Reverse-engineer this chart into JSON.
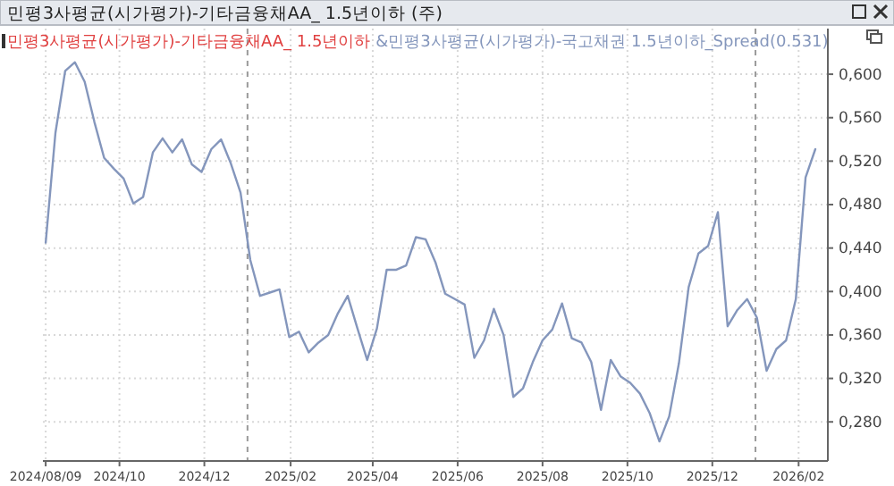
{
  "chart_data": {
    "type": "line",
    "title": "민평3사평균(시가평가)-기타금융채AA_ 1.5년이하 (주)",
    "subtitle": "민평3사평균(시가평가)-기타금융채AA_ 1.5년이하",
    "x": [
      "2024-08-09",
      "2024-08-16",
      "2024-08-23",
      "2024-08-30",
      "2024-09-06",
      "2024-09-13",
      "2024-09-20",
      "2024-09-27",
      "2024-10-04",
      "2024-10-11",
      "2024-10-18",
      "2024-10-25",
      "2024-11-01",
      "2024-11-08",
      "2024-11-15",
      "2024-11-22",
      "2024-11-29",
      "2024-12-06",
      "2024-12-13",
      "2024-12-20",
      "2024-12-27",
      "2025-01-03",
      "2025-01-10",
      "2025-01-17",
      "2025-01-24",
      "2025-01-31",
      "2025-02-07",
      "2025-02-14",
      "2025-02-21",
      "2025-02-28",
      "2025-03-07",
      "2025-03-14",
      "2025-03-21",
      "2025-03-28",
      "2025-04-04",
      "2025-04-11",
      "2025-04-18",
      "2025-04-25",
      "2025-05-02",
      "2025-05-09",
      "2025-05-16",
      "2025-05-23",
      "2025-05-30",
      "2025-06-06",
      "2025-06-13",
      "2025-06-20",
      "2025-06-27",
      "2025-07-04",
      "2025-07-11",
      "2025-07-18",
      "2025-07-25",
      "2025-08-01",
      "2025-08-08",
      "2025-08-15",
      "2025-08-22",
      "2025-08-29",
      "2025-09-05",
      "2025-09-12",
      "2025-09-19",
      "2025-09-26",
      "2025-10-03",
      "2025-10-10",
      "2025-10-17",
      "2025-10-24",
      "2025-10-31",
      "2025-11-07",
      "2025-11-14",
      "2025-11-21",
      "2025-11-28",
      "2025-12-05",
      "2025-12-12",
      "2025-12-19",
      "2025-12-26",
      "2026-01-02",
      "2026-01-09",
      "2026-01-16",
      "2026-01-23",
      "2026-01-30",
      "2026-02-06",
      "2026-02-13"
    ],
    "series": [
      {
        "name": "&민평3사평균(시가평가)-국고채권 1.5년이하_Spread(0.531)",
        "color": "#8496bc",
        "values": [
          0.445,
          0.546,
          0.603,
          0.611,
          0.593,
          0.556,
          0.523,
          0.513,
          0.504,
          0.481,
          0.487,
          0.528,
          0.541,
          0.528,
          0.54,
          0.517,
          0.51,
          0.531,
          0.54,
          0.518,
          0.491,
          0.429,
          0.396,
          0.399,
          0.402,
          0.358,
          0.363,
          0.344,
          0.353,
          0.36,
          0.38,
          0.396,
          0.366,
          0.337,
          0.366,
          0.42,
          0.42,
          0.424,
          0.45,
          0.448,
          0.427,
          0.398,
          0.393,
          0.388,
          0.339,
          0.355,
          0.384,
          0.36,
          0.303,
          0.311,
          0.335,
          0.355,
          0.365,
          0.389,
          0.357,
          0.353,
          0.335,
          0.291,
          0.337,
          0.322,
          0.316,
          0.306,
          0.288,
          0.262,
          0.285,
          0.334,
          0.404,
          0.435,
          0.442,
          0.473,
          0.368,
          0.383,
          0.393,
          0.376,
          0.327,
          0.347,
          0.355,
          0.393,
          0.505,
          0.531
        ]
      }
    ],
    "xlim": [
      "2024-08-07",
      "2026-02-22"
    ],
    "xticks": [
      {
        "value": "2024-08-09",
        "label": "2024/08/09"
      },
      {
        "value": "2024-10-01",
        "label": "2024/10"
      },
      {
        "value": "2024-12-01",
        "label": "2024/12"
      },
      {
        "value": "2025-02-01",
        "label": "2025/02"
      },
      {
        "value": "2025-04-01",
        "label": "2025/04"
      },
      {
        "value": "2025-06-01",
        "label": "2025/06"
      },
      {
        "value": "2025-08-01",
        "label": "2025/08"
      },
      {
        "value": "2025-10-01",
        "label": "2025/10"
      },
      {
        "value": "2025-12-01",
        "label": "2025/12"
      },
      {
        "value": "2026-02-01",
        "label": "2026/02"
      }
    ],
    "ylim": [
      0.244,
      0.642
    ],
    "yticks": [
      {
        "value": 0.28,
        "label": "0,280"
      },
      {
        "value": 0.32,
        "label": "0,320"
      },
      {
        "value": 0.36,
        "label": "0,360"
      },
      {
        "value": 0.4,
        "label": "0,400"
      },
      {
        "value": 0.44,
        "label": "0,440"
      },
      {
        "value": 0.48,
        "label": "0,480"
      },
      {
        "value": 0.52,
        "label": "0,520"
      },
      {
        "value": 0.56,
        "label": "0,560"
      },
      {
        "value": 0.6,
        "label": "0,600"
      }
    ],
    "ref_lines": [
      {
        "axis": "x",
        "value": "2025-01-01",
        "color": "#9a9a9a",
        "line_style": "dashed"
      },
      {
        "axis": "x",
        "value": "2026-01-01",
        "color": "#9a9a9a",
        "line_style": "dashed"
      }
    ],
    "grid": true,
    "legend": "top",
    "marker": "none",
    "line_style": "solid"
  }
}
